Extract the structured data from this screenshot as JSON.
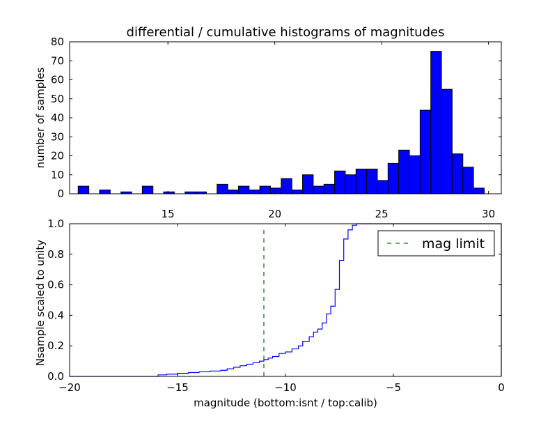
{
  "chart_data": [
    {
      "type": "bar",
      "subtype": "histogram",
      "title": "differential / cumulative histograms of magnitudes",
      "xlabel": "",
      "ylabel": "number of samples",
      "xlim": [
        10.4,
        30.6
      ],
      "ylim": [
        0,
        80
      ],
      "xticks": [
        15,
        20,
        25,
        30
      ],
      "yticks": [
        0,
        10,
        20,
        30,
        40,
        50,
        60,
        70,
        80
      ],
      "xtick_position": "bottom",
      "bar_color": "#0000ff",
      "bin_width": 0.5,
      "bin_starts": [
        10.8,
        11.3,
        11.8,
        12.3,
        12.8,
        13.3,
        13.8,
        14.3,
        14.8,
        15.3,
        15.8,
        16.3,
        16.8,
        17.3,
        17.8,
        18.3,
        18.8,
        19.3,
        19.8,
        20.3,
        20.8,
        21.3,
        21.8,
        22.3,
        22.8,
        23.3,
        23.8,
        24.3,
        24.8,
        25.3,
        25.8,
        26.3,
        26.8,
        27.3,
        27.8,
        28.3,
        28.8,
        29.3,
        29.8
      ],
      "values": [
        4,
        0,
        2,
        0,
        1,
        0,
        4,
        0,
        1,
        0,
        1,
        1,
        0,
        5,
        2,
        4,
        2,
        4,
        3,
        8,
        2,
        10,
        4,
        5,
        12,
        10,
        13,
        13,
        7,
        16,
        23,
        20,
        44,
        75,
        55,
        21,
        14,
        3,
        0
      ],
      "grid": false
    },
    {
      "type": "line",
      "subtype": "cumulative-step",
      "title": "",
      "xlabel": "magnitude (bottom:isnt / top:calib)",
      "ylabel": "Nsample scaled to unity",
      "xlim": [
        -20,
        0
      ],
      "ylim": [
        0,
        1
      ],
      "xticks": [
        -20,
        -15,
        -10,
        -5,
        0
      ],
      "xtick_labels": [
        "−20",
        "−15",
        "−10",
        "−5",
        "0"
      ],
      "yticks": [
        0,
        0.2,
        0.4,
        0.6,
        0.8,
        1.0
      ],
      "ytick_labels": [
        "0.0",
        "0.2",
        "0.4",
        "0.6",
        "0.8",
        "1.0"
      ],
      "legend": {
        "position": "top-right",
        "entries": [
          "mag limit"
        ]
      },
      "series": [
        {
          "style": "step",
          "color": "#0000ff",
          "x": [
            -20,
            -15.9,
            -15.5,
            -15,
            -14.5,
            -14,
            -13.5,
            -13,
            -12.7,
            -12.4,
            -12.1,
            -11.8,
            -11.5,
            -11.2,
            -11.0,
            -10.8,
            -10.6,
            -10.3,
            -10.0,
            -9.7,
            -9.4,
            -9.2,
            -8.9,
            -8.7,
            -8.5,
            -8.3,
            -8.1,
            -7.9,
            -7.7,
            -7.5,
            -7.3,
            -7.1,
            -6.9,
            -6.7,
            -6.5
          ],
          "y": [
            0,
            0.01,
            0.015,
            0.02,
            0.025,
            0.03,
            0.035,
            0.04,
            0.05,
            0.06,
            0.07,
            0.08,
            0.09,
            0.1,
            0.11,
            0.12,
            0.13,
            0.15,
            0.16,
            0.18,
            0.2,
            0.23,
            0.26,
            0.29,
            0.31,
            0.35,
            0.41,
            0.46,
            0.57,
            0.76,
            0.9,
            0.96,
            0.99,
            1.0,
            1.0
          ]
        },
        {
          "name": "mag limit",
          "style": "dashed-vertical",
          "color": "#008000",
          "x": [
            -11,
            -11
          ],
          "y": [
            0,
            0.96
          ]
        }
      ],
      "grid": false
    }
  ]
}
